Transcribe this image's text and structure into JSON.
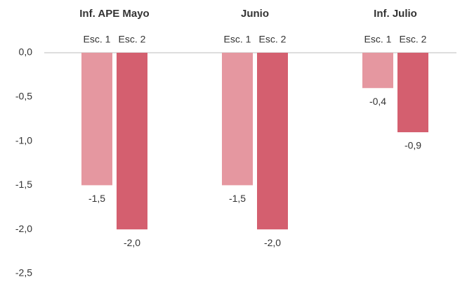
{
  "chart_data": {
    "type": "bar",
    "categories": [
      "Inf. APE Mayo",
      "Junio",
      "Inf. Julio"
    ],
    "series": [
      {
        "name": "Esc. 1",
        "color": "#e597a0",
        "values": [
          -1.5,
          -1.5,
          -0.4
        ],
        "value_labels": [
          "-1,5",
          "-1,5",
          "-0,4"
        ]
      },
      {
        "name": "Esc. 2",
        "color": "#d45f6f",
        "values": [
          -2.0,
          -2.0,
          -0.9
        ],
        "value_labels": [
          "-2,0",
          "-2,0",
          "-0,9"
        ]
      }
    ],
    "ylim": [
      -2.5,
      0
    ],
    "yticks": [
      {
        "value": 0,
        "label": "0,0"
      },
      {
        "value": -0.5,
        "label": "-0,5"
      },
      {
        "value": -1,
        "label": "-1,0"
      },
      {
        "value": -1.5,
        "label": "-1,5"
      },
      {
        "value": -2,
        "label": "-2,0"
      },
      {
        "value": -2.5,
        "label": "-2,5"
      }
    ],
    "grid": false
  }
}
